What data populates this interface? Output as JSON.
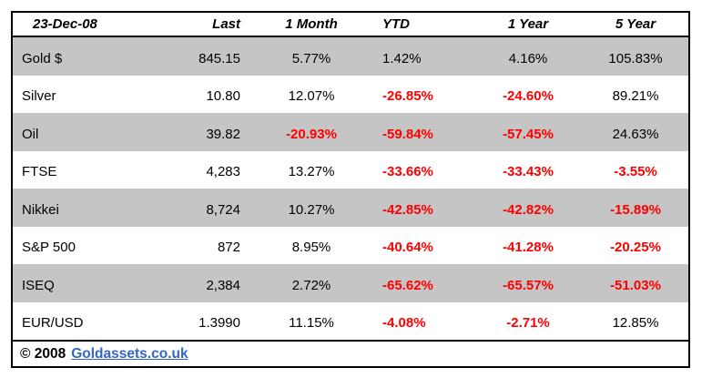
{
  "title_date": "23-Dec-08",
  "columns": {
    "last": "Last",
    "m1": "1 Month",
    "ytd": "YTD",
    "y1": "1 Year",
    "y5": "5 Year"
  },
  "rows": [
    {
      "label": "Gold $",
      "last": "845.15",
      "m1": "5.77%",
      "ytd": "1.42%",
      "y1": "4.16%",
      "y5": "105.83%"
    },
    {
      "label": "Silver",
      "last": "10.80",
      "m1": "12.07%",
      "ytd": "-26.85%",
      "y1": "-24.60%",
      "y5": "89.21%"
    },
    {
      "label": "Oil",
      "last": "39.82",
      "m1": "-20.93%",
      "ytd": "-59.84%",
      "y1": "-57.45%",
      "y5": "24.63%"
    },
    {
      "label": "FTSE",
      "last": "4,283",
      "m1": "13.27%",
      "ytd": "-33.66%",
      "y1": "-33.43%",
      "y5": "-3.55%"
    },
    {
      "label": "Nikkei",
      "last": "8,724",
      "m1": "10.27%",
      "ytd": "-42.85%",
      "y1": "-42.82%",
      "y5": "-15.89%"
    },
    {
      "label": "S&P 500",
      "last": "872",
      "m1": "8.95%",
      "ytd": "-40.64%",
      "y1": "-41.28%",
      "y5": "-20.25%"
    },
    {
      "label": "ISEQ",
      "last": "2,384",
      "m1": "2.72%",
      "ytd": "-65.62%",
      "y1": "-65.57%",
      "y5": "-51.03%"
    },
    {
      "label": "EUR/USD",
      "last": "1.3990",
      "m1": "11.15%",
      "ytd": "-4.08%",
      "y1": "-2.71%",
      "y5": "12.85%"
    }
  ],
  "footer": {
    "copyright": "© 2008",
    "link_text": "Goldassets.co.uk"
  },
  "colors": {
    "negative": "#FF0000",
    "row_stripe": "#C5C5C5",
    "link_blue": "#3366CC",
    "border": "#000000"
  },
  "chart_data": {
    "type": "table",
    "title": "Market performance as of 23-Dec-08",
    "columns": [
      "23-Dec-08",
      "Last",
      "1 Month",
      "YTD",
      "1 Year",
      "5 Year"
    ],
    "rows": [
      [
        "Gold $",
        "845.15",
        "5.77%",
        "1.42%",
        "4.16%",
        "105.83%"
      ],
      [
        "Silver",
        "10.80",
        "12.07%",
        "-26.85%",
        "-24.60%",
        "89.21%"
      ],
      [
        "Oil",
        "39.82",
        "-20.93%",
        "-59.84%",
        "-57.45%",
        "24.63%"
      ],
      [
        "FTSE",
        "4,283",
        "13.27%",
        "-33.66%",
        "-33.43%",
        "-3.55%"
      ],
      [
        "Nikkei",
        "8,724",
        "10.27%",
        "-42.85%",
        "-42.82%",
        "-15.89%"
      ],
      [
        "S&P 500",
        "872",
        "8.95%",
        "-40.64%",
        "-41.28%",
        "-20.25%"
      ],
      [
        "ISEQ",
        "2,384",
        "2.72%",
        "-65.62%",
        "-65.57%",
        "-51.03%"
      ],
      [
        "EUR/USD",
        "1.3990",
        "11.15%",
        "-4.08%",
        "-2.71%",
        "12.85%"
      ]
    ],
    "notes": "Negative percentages shown in bold red; rows striped gray starting with Gold $; Last column right-aligned"
  }
}
